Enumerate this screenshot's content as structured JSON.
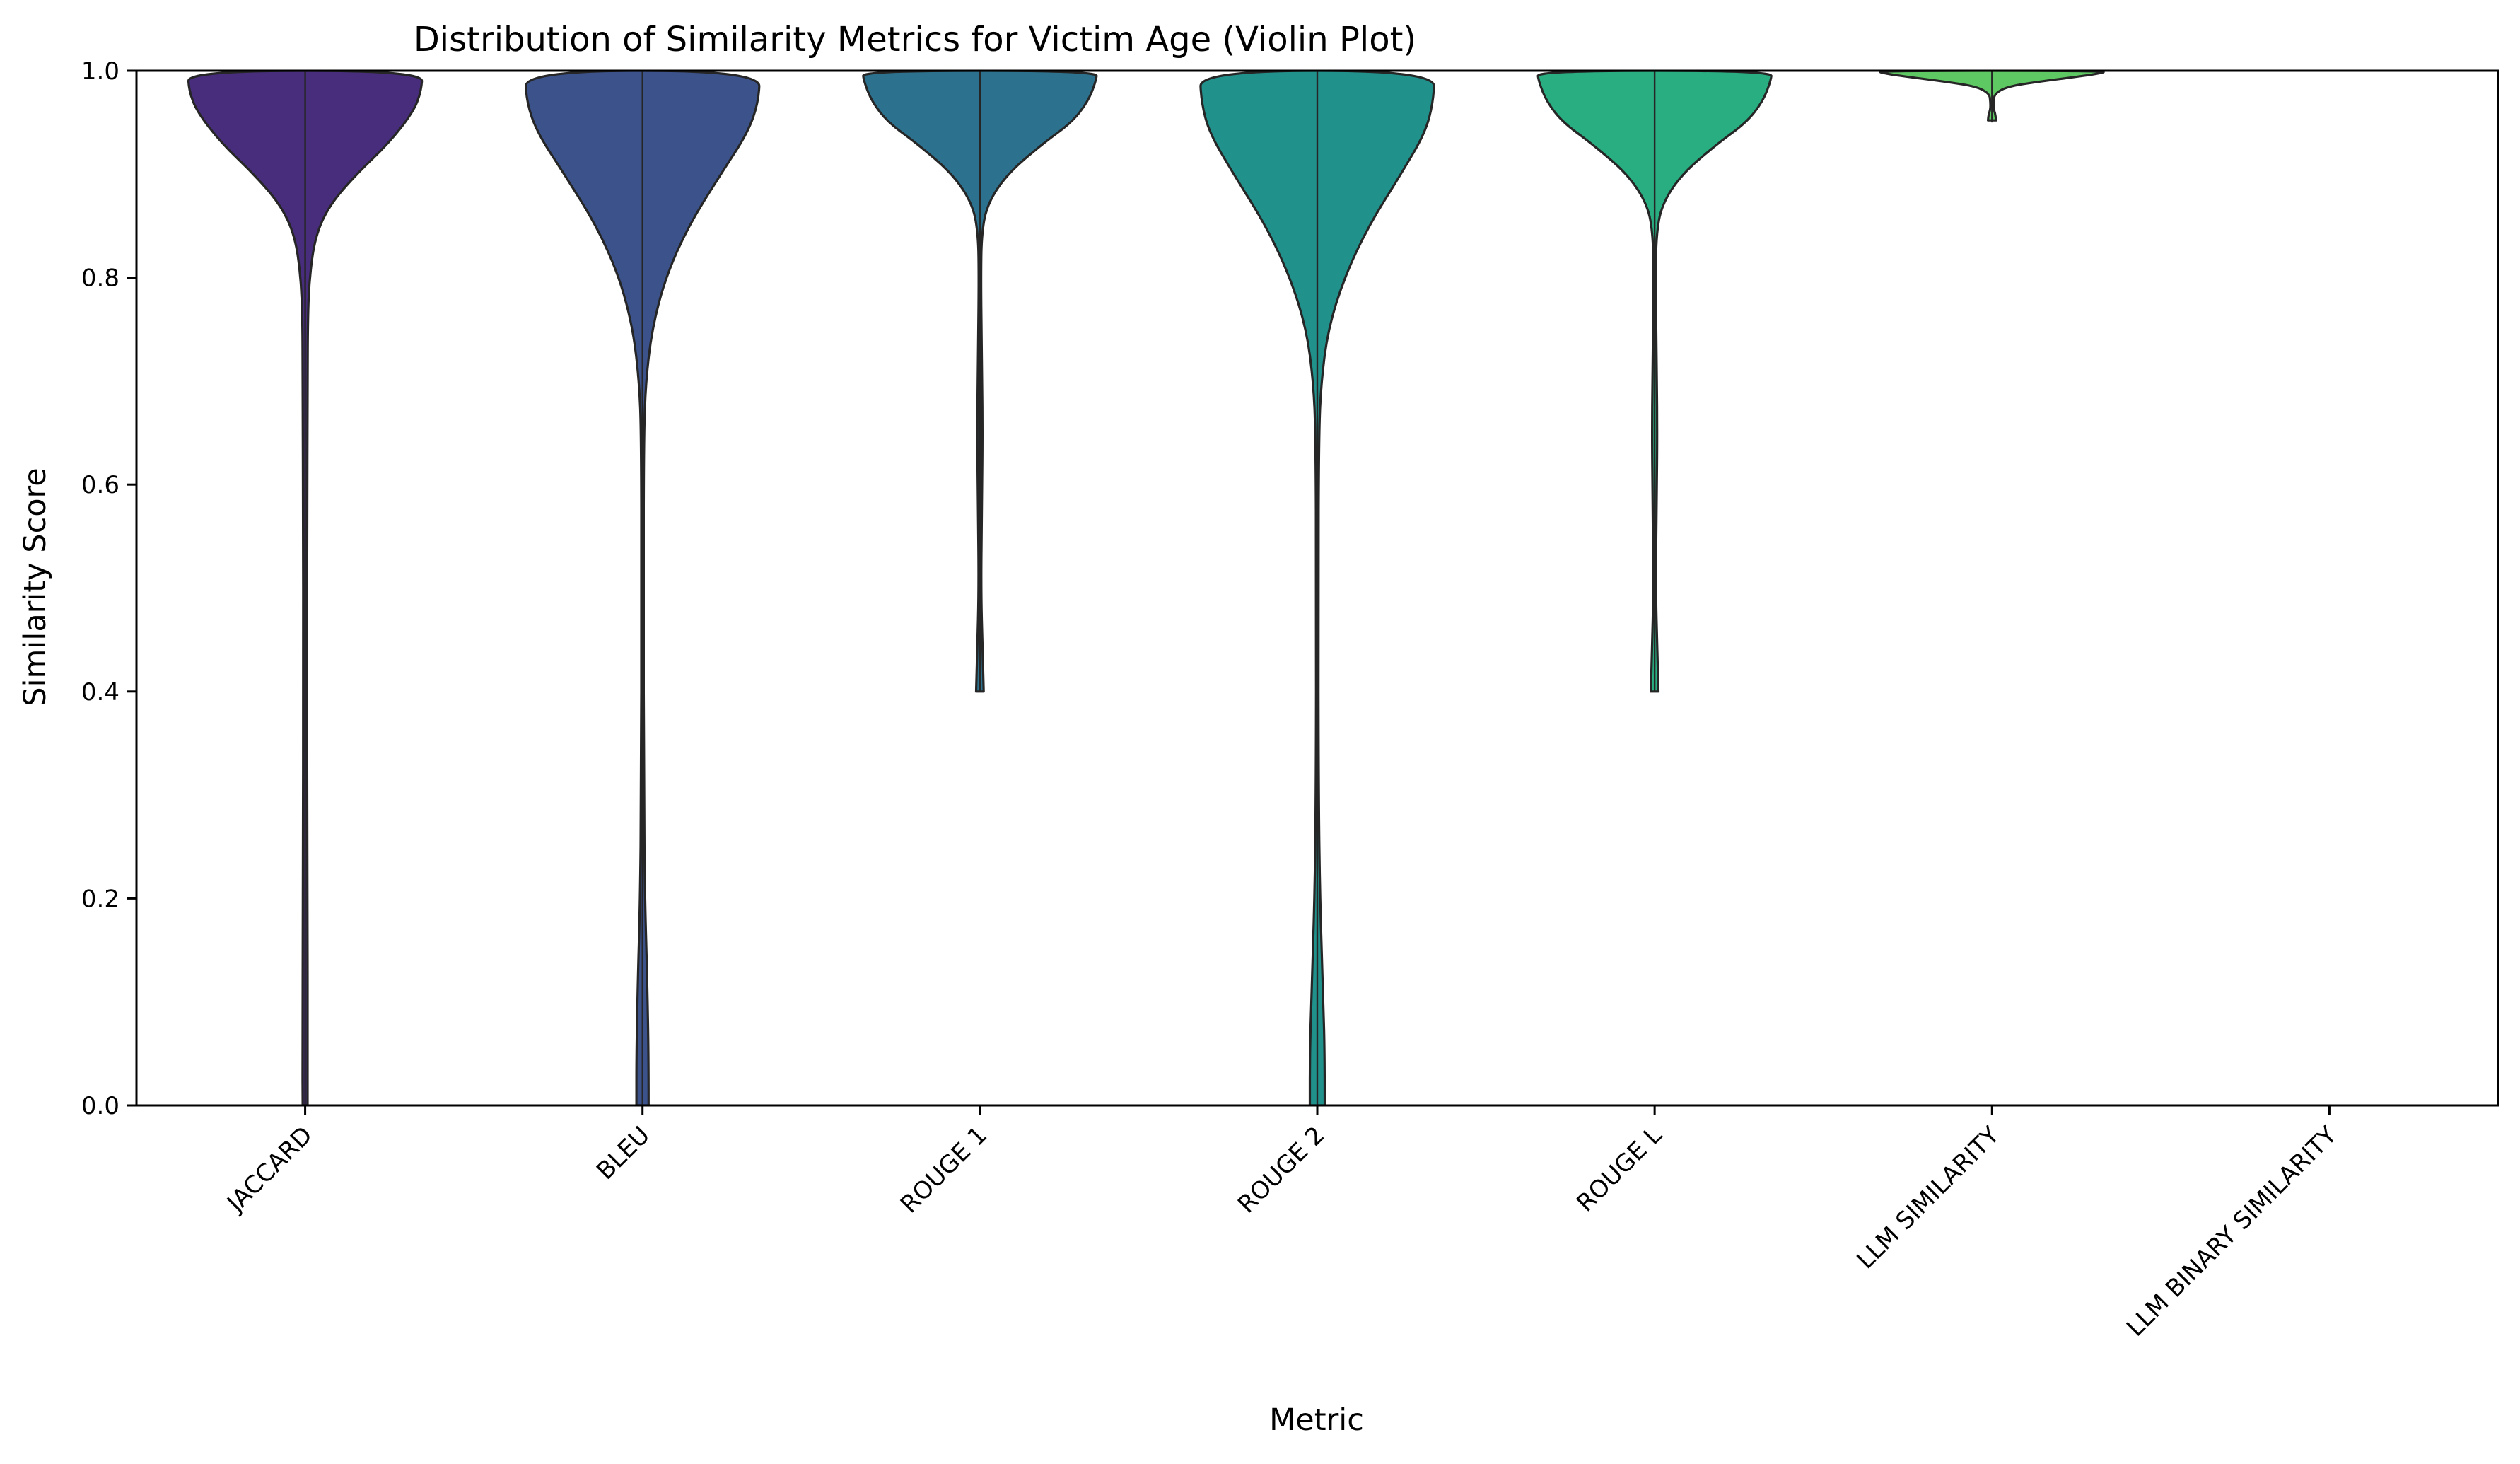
{
  "chart_data": {
    "type": "violin",
    "title": "Distribution of Similarity Metrics for Victim Age (Violin Plot)",
    "xlabel": "Metric",
    "ylabel": "Similarity Score",
    "ylim": [
      0.0,
      1.0
    ],
    "y_ticks": [
      "0.0",
      "0.2",
      "0.4",
      "0.6",
      "0.8",
      "1.0"
    ],
    "grid": false,
    "categories": [
      "JACCARD",
      "BLEU",
      "ROUGE 1",
      "ROUGE 2",
      "ROUGE L",
      "LLM SIMILARITY",
      "LLM BINARY SIMILARITY"
    ],
    "colors": [
      "#472d7b",
      "#3b528b",
      "#2c728e",
      "#21918c",
      "#28ae80",
      "#5ec962",
      "#addc30"
    ],
    "edge_color": "#262626",
    "violins": [
      {
        "name": "JACCARD",
        "range": [
          0.0,
          1.0
        ],
        "profile": [
          [
            0.0,
            0.018
          ],
          [
            0.05,
            0.02
          ],
          [
            0.2,
            0.016
          ],
          [
            0.45,
            0.014
          ],
          [
            0.55,
            0.015
          ],
          [
            0.7,
            0.018
          ],
          [
            0.76,
            0.02
          ],
          [
            0.8,
            0.032
          ],
          [
            0.84,
            0.075
          ],
          [
            0.87,
            0.18
          ],
          [
            0.9,
            0.38
          ],
          [
            0.93,
            0.62
          ],
          [
            0.96,
            0.8
          ],
          [
            0.98,
            0.86
          ],
          [
            1.0,
            0.87
          ]
        ]
      },
      {
        "name": "BLEU",
        "range": [
          0.0,
          1.0
        ],
        "profile": [
          [
            0.0,
            0.045
          ],
          [
            0.05,
            0.045
          ],
          [
            0.12,
            0.035
          ],
          [
            0.2,
            0.018
          ],
          [
            0.3,
            0.01
          ],
          [
            0.5,
            0.008
          ],
          [
            0.65,
            0.01
          ],
          [
            0.7,
            0.025
          ],
          [
            0.75,
            0.07
          ],
          [
            0.8,
            0.17
          ],
          [
            0.85,
            0.34
          ],
          [
            0.9,
            0.58
          ],
          [
            0.94,
            0.78
          ],
          [
            0.97,
            0.86
          ],
          [
            1.0,
            0.87
          ]
        ]
      },
      {
        "name": "ROUGE 1",
        "range": [
          0.4,
          1.0
        ],
        "profile": [
          [
            0.4,
            0.028
          ],
          [
            0.44,
            0.02
          ],
          [
            0.5,
            0.008
          ],
          [
            0.58,
            0.015
          ],
          [
            0.66,
            0.02
          ],
          [
            0.74,
            0.012
          ],
          [
            0.8,
            0.008
          ],
          [
            0.84,
            0.012
          ],
          [
            0.87,
            0.05
          ],
          [
            0.9,
            0.2
          ],
          [
            0.93,
            0.47
          ],
          [
            0.95,
            0.68
          ],
          [
            0.97,
            0.8
          ],
          [
            0.99,
            0.86
          ],
          [
            1.0,
            0.87
          ]
        ]
      },
      {
        "name": "ROUGE 2",
        "range": [
          0.0,
          1.0
        ],
        "profile": [
          [
            0.0,
            0.055
          ],
          [
            0.05,
            0.055
          ],
          [
            0.1,
            0.045
          ],
          [
            0.2,
            0.02
          ],
          [
            0.3,
            0.01
          ],
          [
            0.5,
            0.008
          ],
          [
            0.65,
            0.012
          ],
          [
            0.7,
            0.03
          ],
          [
            0.75,
            0.08
          ],
          [
            0.8,
            0.2
          ],
          [
            0.85,
            0.38
          ],
          [
            0.9,
            0.62
          ],
          [
            0.94,
            0.8
          ],
          [
            0.97,
            0.86
          ],
          [
            1.0,
            0.87
          ]
        ]
      },
      {
        "name": "ROUGE L",
        "range": [
          0.4,
          1.0
        ],
        "profile": [
          [
            0.4,
            0.028
          ],
          [
            0.44,
            0.02
          ],
          [
            0.5,
            0.008
          ],
          [
            0.58,
            0.015
          ],
          [
            0.66,
            0.02
          ],
          [
            0.74,
            0.012
          ],
          [
            0.8,
            0.008
          ],
          [
            0.84,
            0.012
          ],
          [
            0.87,
            0.05
          ],
          [
            0.9,
            0.2
          ],
          [
            0.93,
            0.47
          ],
          [
            0.95,
            0.68
          ],
          [
            0.97,
            0.8
          ],
          [
            0.99,
            0.86
          ],
          [
            1.0,
            0.87
          ]
        ]
      },
      {
        "name": "LLM SIMILARITY",
        "range": [
          0.95,
          1.0
        ],
        "profile": [
          [
            0.952,
            0.03
          ],
          [
            0.958,
            0.025
          ],
          [
            0.963,
            0.012
          ],
          [
            0.97,
            0.012
          ],
          [
            0.978,
            0.02
          ],
          [
            0.985,
            0.12
          ],
          [
            0.99,
            0.38
          ],
          [
            0.994,
            0.62
          ],
          [
            0.997,
            0.78
          ],
          [
            1.0,
            0.87
          ]
        ]
      },
      {
        "name": "LLM BINARY SIMILARITY",
        "range": [
          1.0,
          1.0
        ],
        "profile": [
          [
            1.0,
            0.87
          ]
        ]
      }
    ]
  }
}
